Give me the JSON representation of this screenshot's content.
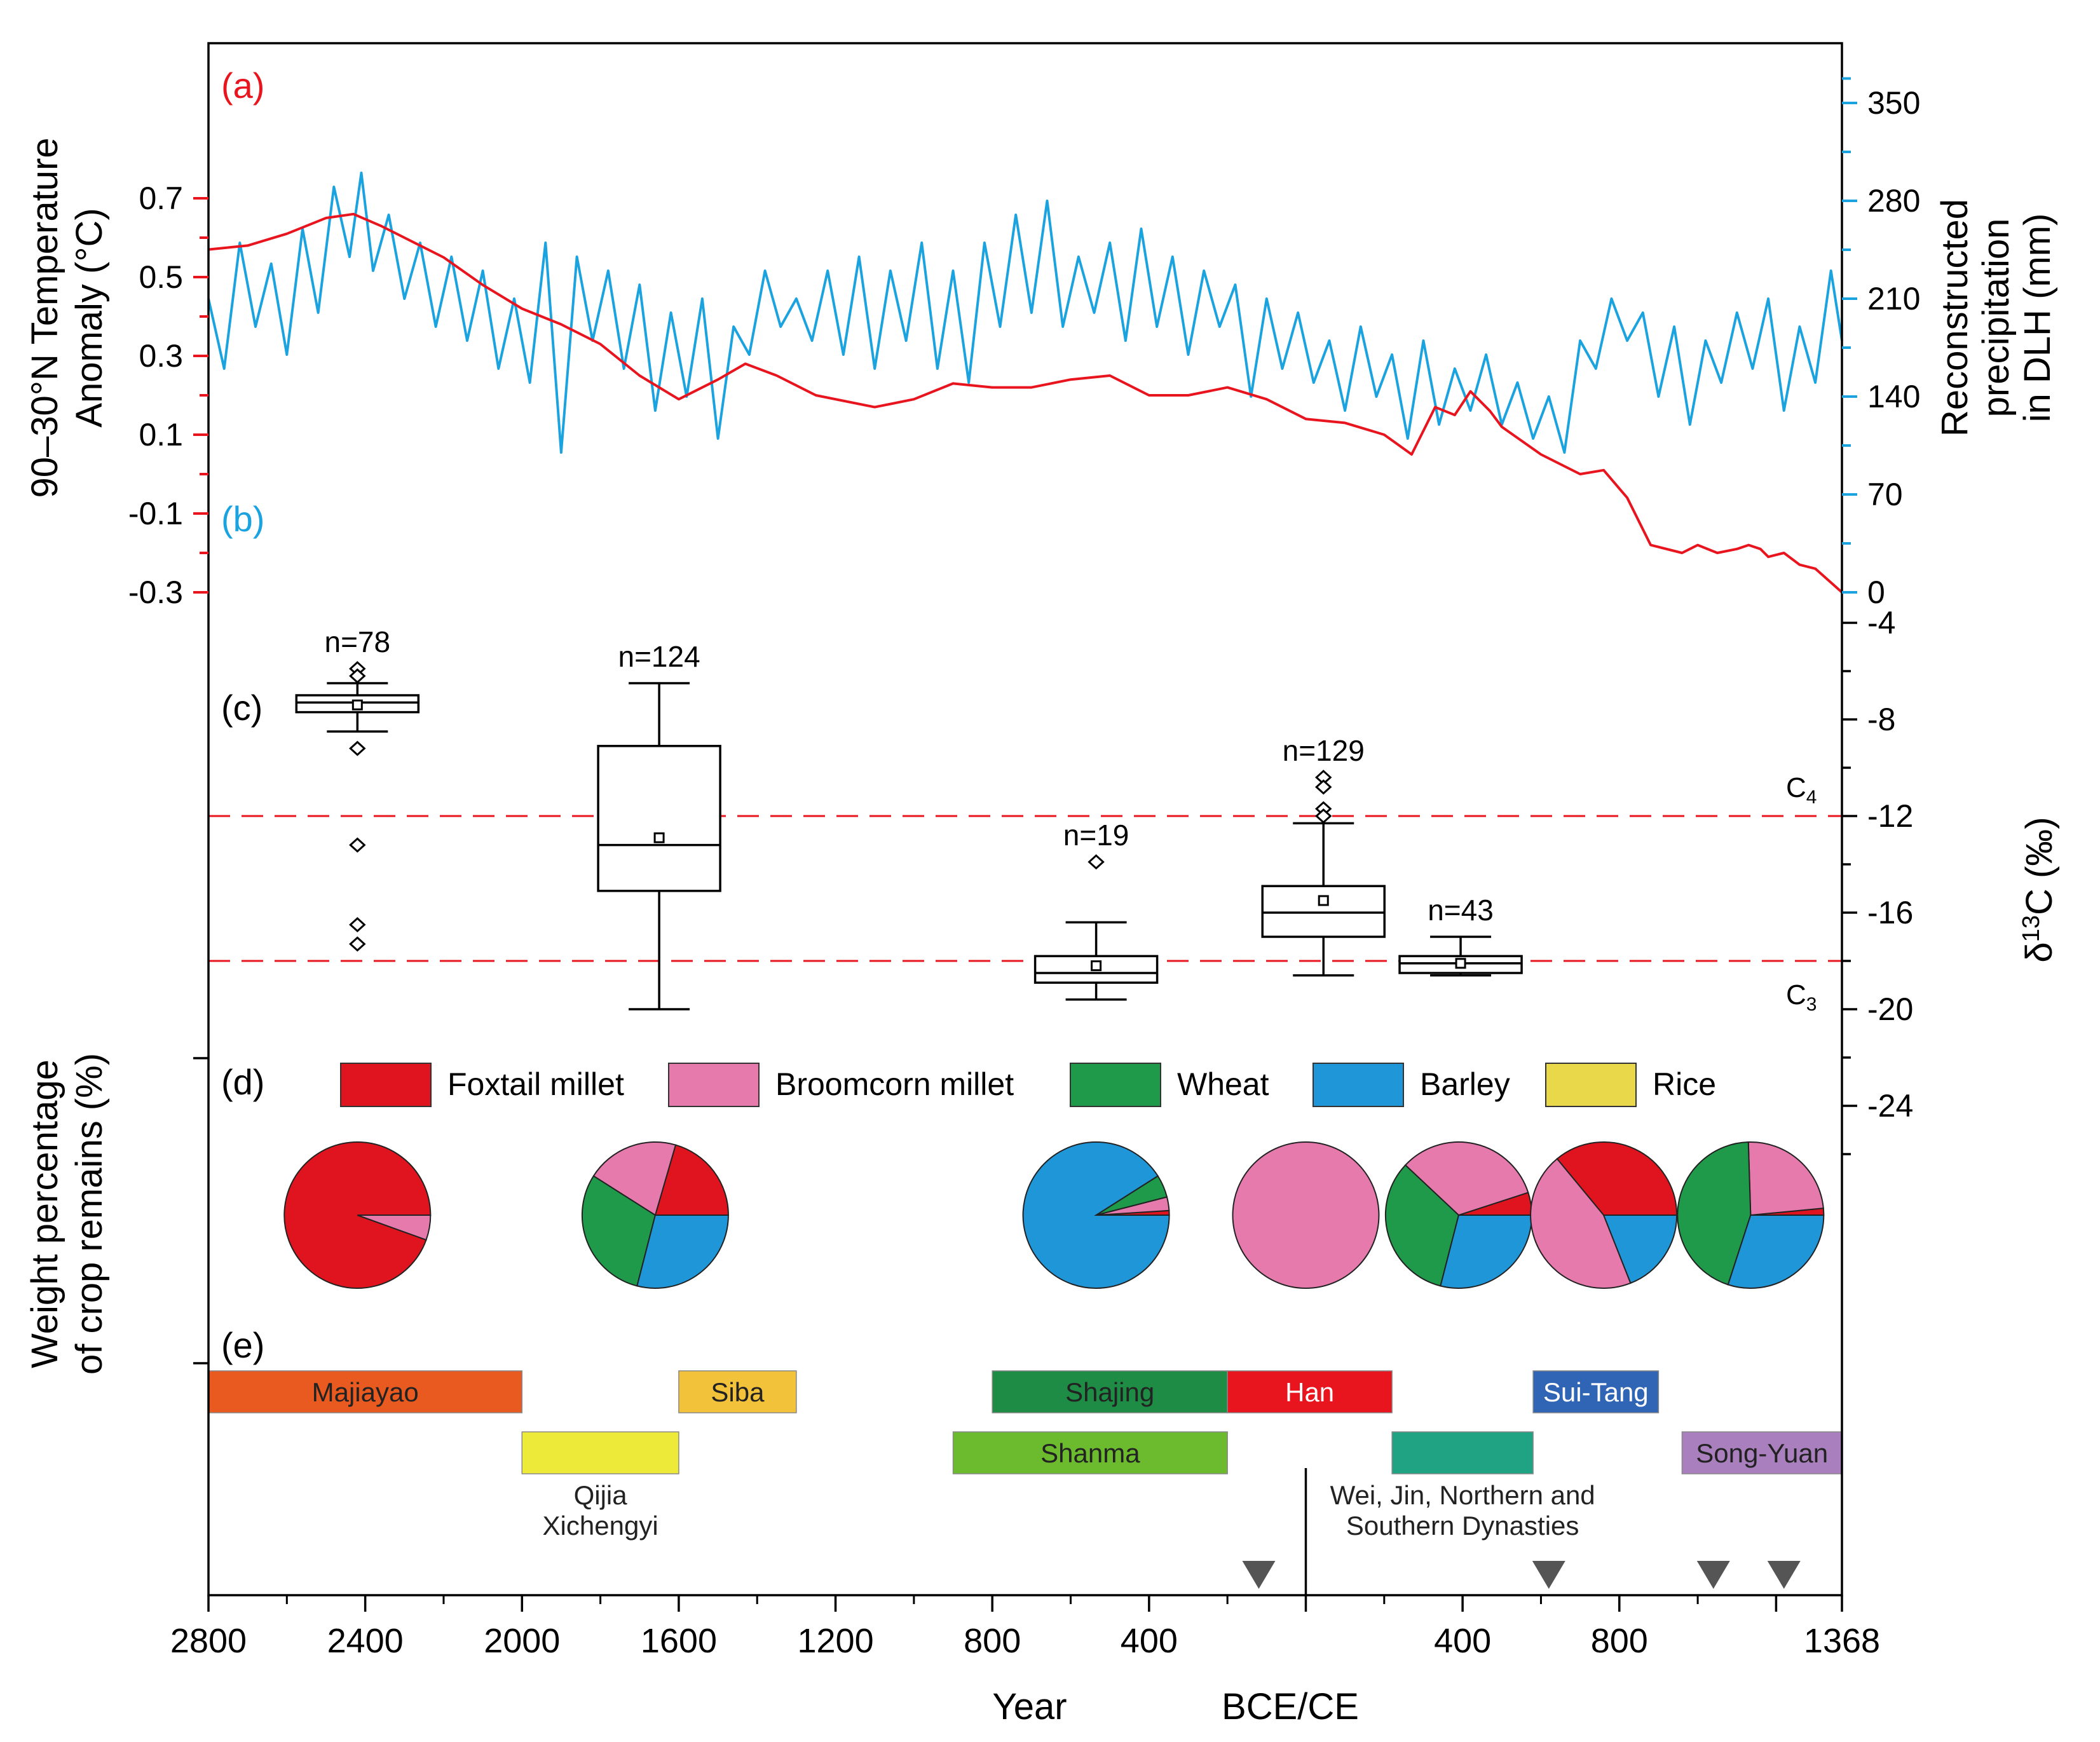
{
  "chart_data": {
    "type": "composite",
    "x_axis": {
      "label": "Year",
      "era_label": "BCE/CE",
      "range": [
        -2800,
        1368
      ],
      "tick_labels": [
        "2800",
        "2400",
        "2000",
        "1600",
        "1200",
        "800",
        "400",
        "400",
        "800",
        "1368"
      ],
      "tick_values": [
        -2800,
        -2400,
        -2000,
        -1600,
        -1200,
        -800,
        -400,
        400,
        800,
        1368
      ]
    },
    "panel_labels": {
      "a": "(a)",
      "b": "(b)",
      "c": "(c)",
      "d": "(d)",
      "e": "(e)"
    },
    "temperature": {
      "ylabel_line1": "90–30°N Temperature",
      "ylabel_line2": "Anomaly (°C)",
      "color": "#e8141e",
      "ylim": [
        -0.3,
        0.75
      ],
      "ticks": [
        "0.7",
        "0.5",
        "0.3",
        "0.1",
        "-0.1",
        "-0.3"
      ],
      "x": [
        -2800,
        -2700,
        -2600,
        -2500,
        -2430,
        -2360,
        -2300,
        -2200,
        -2100,
        -2000,
        -1900,
        -1800,
        -1700,
        -1600,
        -1500,
        -1430,
        -1350,
        -1250,
        -1100,
        -1000,
        -900,
        -800,
        -700,
        -600,
        -500,
        -400,
        -300,
        -200,
        -100,
        0,
        100,
        200,
        270,
        330,
        380,
        420,
        470,
        500,
        600,
        700,
        760,
        820,
        880,
        960,
        1000,
        1050,
        1100,
        1130,
        1160,
        1180,
        1220,
        1260,
        1300,
        1368
      ],
      "values": [
        0.57,
        0.58,
        0.61,
        0.65,
        0.66,
        0.63,
        0.6,
        0.55,
        0.48,
        0.42,
        0.38,
        0.33,
        0.25,
        0.19,
        0.24,
        0.28,
        0.25,
        0.2,
        0.17,
        0.19,
        0.23,
        0.22,
        0.22,
        0.24,
        0.25,
        0.2,
        0.2,
        0.22,
        0.19,
        0.14,
        0.13,
        0.1,
        0.05,
        0.17,
        0.15,
        0.21,
        0.16,
        0.12,
        0.05,
        0.0,
        0.01,
        -0.06,
        -0.18,
        -0.2,
        -0.18,
        -0.2,
        -0.19,
        -0.18,
        -0.19,
        -0.21,
        -0.2,
        -0.23,
        -0.24,
        -0.3
      ]
    },
    "precipitation": {
      "ylabel_line1": "Reconstructed",
      "ylabel_line2": "precipitation",
      "ylabel_line3": "in DLH (mm)",
      "color": "#1ba3e0",
      "ylim": [
        0,
        367.5
      ],
      "ticks": [
        "350",
        "280",
        "210",
        "140",
        "70",
        "0"
      ],
      "x": [
        -2800,
        -2760,
        -2720,
        -2680,
        -2640,
        -2600,
        -2560,
        -2520,
        -2480,
        -2440,
        -2410,
        -2380,
        -2340,
        -2300,
        -2260,
        -2220,
        -2180,
        -2140,
        -2100,
        -2060,
        -2020,
        -1980,
        -1940,
        -1900,
        -1860,
        -1820,
        -1780,
        -1740,
        -1700,
        -1660,
        -1620,
        -1580,
        -1540,
        -1500,
        -1460,
        -1420,
        -1380,
        -1340,
        -1300,
        -1260,
        -1220,
        -1180,
        -1140,
        -1100,
        -1060,
        -1020,
        -980,
        -940,
        -900,
        -860,
        -820,
        -780,
        -740,
        -700,
        -660,
        -620,
        -580,
        -540,
        -500,
        -460,
        -420,
        -380,
        -340,
        -300,
        -260,
        -220,
        -180,
        -140,
        -100,
        -60,
        -20,
        20,
        60,
        100,
        140,
        180,
        220,
        260,
        300,
        340,
        380,
        420,
        460,
        500,
        540,
        580,
        620,
        660,
        700,
        740,
        780,
        820,
        860,
        900,
        940,
        980,
        1020,
        1060,
        1100,
        1140,
        1180,
        1220,
        1260,
        1300,
        1340,
        1368
      ],
      "values": [
        210,
        160,
        250,
        190,
        235,
        170,
        260,
        200,
        290,
        240,
        300,
        230,
        270,
        210,
        250,
        190,
        240,
        180,
        230,
        160,
        210,
        150,
        250,
        100,
        240,
        180,
        230,
        160,
        220,
        130,
        200,
        140,
        210,
        110,
        190,
        170,
        230,
        190,
        210,
        180,
        230,
        170,
        240,
        160,
        230,
        180,
        250,
        160,
        230,
        150,
        250,
        190,
        270,
        200,
        280,
        190,
        240,
        200,
        250,
        180,
        260,
        190,
        240,
        170,
        230,
        190,
        220,
        140,
        210,
        160,
        200,
        150,
        180,
        130,
        190,
        140,
        170,
        110,
        180,
        120,
        160,
        130,
        170,
        120,
        150,
        110,
        140,
        100,
        180,
        160,
        210,
        180,
        200,
        140,
        190,
        120,
        180,
        150,
        200,
        160,
        210,
        130,
        190,
        150,
        230,
        180
      ]
    },
    "isotope": {
      "ylabel": "δ13C (‰)",
      "ylim": [
        -26,
        -3.5
      ],
      "ticks": [
        "-4",
        "-8",
        "-12",
        "-16",
        "-20",
        "-24"
      ],
      "reference_lines": [
        {
          "label": "C4",
          "value": -12,
          "color": "#e8141e"
        },
        {
          "label": "C3",
          "value": -18,
          "color": "#e8141e"
        }
      ],
      "boxes": [
        {
          "x": -2420,
          "n": "n=78",
          "whisker_low": -8.5,
          "q1": -7.7,
          "median": -7.3,
          "q3": -7.0,
          "whisker_high": -6.5,
          "mean": -7.4,
          "outliers": [
            -5.9,
            -6.2,
            -9.2,
            -13.2,
            -16.5,
            -17.3
          ]
        },
        {
          "x": -1650,
          "n": "n=124",
          "whisker_low": -20.0,
          "q1": -15.1,
          "median": -13.2,
          "q3": -9.1,
          "whisker_high": -6.5,
          "mean": -12.9,
          "outliers": []
        },
        {
          "x": -535,
          "n": "n=19",
          "whisker_low": -19.6,
          "q1": -18.9,
          "median": -18.5,
          "q3": -17.8,
          "whisker_high": -16.4,
          "mean": -18.2,
          "outliers": [
            -13.9
          ]
        },
        {
          "x": 45,
          "n": "n=129",
          "whisker_low": -18.6,
          "q1": -17.0,
          "median": -16.0,
          "q3": -14.9,
          "whisker_high": -12.3,
          "mean": -15.5,
          "outliers": [
            -10.4,
            -10.8,
            -11.7,
            -12.0
          ]
        },
        {
          "x": 395,
          "n": "n=43",
          "whisker_low": -18.6,
          "q1": -18.5,
          "median": -18.1,
          "q3": -17.8,
          "whisker_high": -17.0,
          "mean": -18.1,
          "outliers": []
        }
      ]
    },
    "crops": {
      "ylabel_line1": "Weight percentage",
      "ylabel_line2": "of crop remains (%)",
      "legend": [
        {
          "name": "Foxtail millet",
          "color": "#e0141e"
        },
        {
          "name": "Broomcorn millet",
          "color": "#e77aad"
        },
        {
          "name": "Wheat",
          "color": "#1e9a4a"
        },
        {
          "name": "Barley",
          "color": "#1f96d8"
        },
        {
          "name": "Rice",
          "color": "#e8d84a"
        }
      ],
      "pies": [
        {
          "x": -2420,
          "foxtail": 94.5,
          "broomcorn": 5.5,
          "wheat": 0,
          "barley": 0,
          "rice": 0
        },
        {
          "x": -1660,
          "foxtail": 20.5,
          "broomcorn": 20.5,
          "wheat": 30,
          "barley": 29,
          "rice": 0
        },
        {
          "x": -535,
          "foxtail": 1,
          "broomcorn": 3,
          "wheat": 5,
          "barley": 91,
          "rice": 0
        },
        {
          "x": 0,
          "foxtail": 0,
          "broomcorn": 100,
          "wheat": 0,
          "barley": 0,
          "rice": 0
        },
        {
          "x": 390,
          "foxtail": 5,
          "broomcorn": 33,
          "wheat": 33,
          "barley": 29,
          "rice": 0
        },
        {
          "x": 760,
          "foxtail": 36,
          "broomcorn": 45,
          "wheat": 0,
          "barley": 19,
          "rice": 0
        },
        {
          "x": 1135,
          "foxtail": 1.5,
          "broomcorn": 24,
          "wheat": 44.5,
          "barley": 30,
          "rice": 0
        }
      ]
    },
    "periods": [
      {
        "name": "Majiayao",
        "start": -2800,
        "end": -2000,
        "row": 1,
        "color": "#e85a1f"
      },
      {
        "name": "Qijia Xichengyi",
        "line1": "Qijia",
        "line2": "Xichengyi",
        "start": -2000,
        "end": -1600,
        "row": 2,
        "color": "#eeea3a"
      },
      {
        "name": "Siba",
        "start": -1600,
        "end": -1300,
        "row": 1,
        "color": "#f2c23a"
      },
      {
        "name": "Shajing",
        "start": -800,
        "end": -200,
        "row": 1,
        "color": "#1e8c45"
      },
      {
        "name": "Shanma",
        "start": -900,
        "end": -200,
        "row": 2,
        "color": "#6cbb2f"
      },
      {
        "name": "Han",
        "start": -200,
        "end": 220,
        "row": 1,
        "color": "#e8141e"
      },
      {
        "name": "Wei, Jin, Northern and Southern Dynasties",
        "line1": "Wei, Jin, Northern and",
        "line2": "Southern Dynasties",
        "start": 220,
        "end": 580,
        "row": 2,
        "color": "#1fa383"
      },
      {
        "name": "Sui-Tang",
        "start": 580,
        "end": 900,
        "row": 1,
        "color": "#3064b5"
      },
      {
        "name": "Song-Yuan",
        "start": 960,
        "end": 1368,
        "row": 2,
        "color": "#a97fbd"
      }
    ],
    "event_markers": [
      -120,
      620,
      1040,
      1220
    ]
  }
}
